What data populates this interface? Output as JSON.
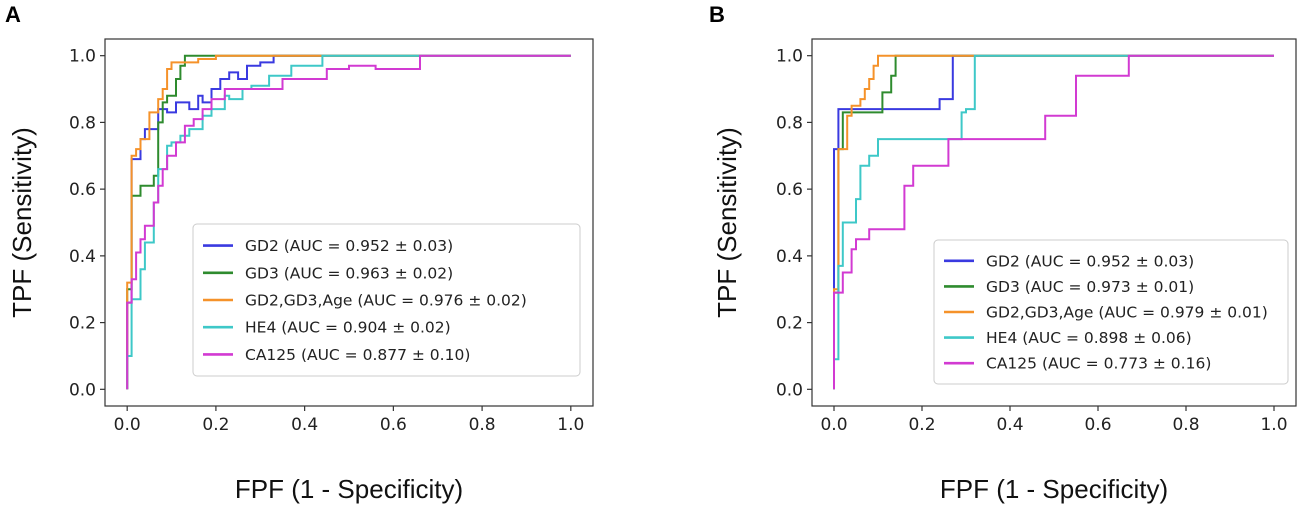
{
  "chart_data": [
    {
      "panel_label": "A",
      "type": "line",
      "xlabel": "FPF (1 - Specificity)",
      "ylabel": "TPF (Sensitivity)",
      "xlim": [
        -0.05,
        1.05
      ],
      "ylim": [
        -0.05,
        1.05
      ],
      "xticks": [
        "0.0",
        "0.2",
        "0.4",
        "0.6",
        "0.8",
        "1.0"
      ],
      "yticks": [
        "0.0",
        "0.2",
        "0.4",
        "0.6",
        "0.8",
        "1.0"
      ],
      "legend_position": "lower-right",
      "series": [
        {
          "name": "GD2 (AUC = 0.952 ± 0.03)",
          "color": "#3a3ae0",
          "x": [
            0,
            0,
            0.01,
            0.01,
            0.03,
            0.03,
            0.04,
            0.04,
            0.07,
            0.07,
            0.09,
            0.09,
            0.11,
            0.11,
            0.14,
            0.14,
            0.16,
            0.16,
            0.17,
            0.17,
            0.19,
            0.19,
            0.21,
            0.21,
            0.23,
            0.23,
            0.25,
            0.25,
            0.27,
            0.27,
            0.3,
            0.3,
            0.33,
            0.33,
            1.0
          ],
          "y": [
            0,
            0.26,
            0.26,
            0.69,
            0.69,
            0.75,
            0.75,
            0.78,
            0.78,
            0.84,
            0.84,
            0.83,
            0.83,
            0.86,
            0.86,
            0.84,
            0.84,
            0.88,
            0.88,
            0.86,
            0.86,
            0.9,
            0.9,
            0.93,
            0.93,
            0.95,
            0.95,
            0.93,
            0.93,
            0.97,
            0.97,
            0.98,
            0.98,
            1.0,
            1.0
          ]
        },
        {
          "name": "GD3 (AUC = 0.963 ± 0.02)",
          "color": "#2e8b2e",
          "x": [
            0,
            0,
            0.01,
            0.01,
            0.03,
            0.03,
            0.06,
            0.06,
            0.07,
            0.07,
            0.08,
            0.08,
            0.09,
            0.09,
            0.11,
            0.11,
            0.12,
            0.12,
            0.13,
            0.13,
            1.0
          ],
          "y": [
            0,
            0.3,
            0.3,
            0.58,
            0.58,
            0.61,
            0.61,
            0.64,
            0.64,
            0.8,
            0.8,
            0.86,
            0.86,
            0.88,
            0.88,
            0.93,
            0.93,
            0.97,
            0.97,
            1.0,
            1.0
          ]
        },
        {
          "name": "GD2,GD3,Age (AUC = 0.976 ± 0.02)",
          "color": "#f5922a",
          "x": [
            0,
            0,
            0.01,
            0.01,
            0.02,
            0.02,
            0.03,
            0.03,
            0.05,
            0.05,
            0.07,
            0.07,
            0.08,
            0.08,
            0.09,
            0.09,
            0.1,
            0.1,
            0.16,
            0.16,
            0.2,
            0.2,
            1.0
          ],
          "y": [
            0,
            0.32,
            0.32,
            0.7,
            0.7,
            0.72,
            0.72,
            0.75,
            0.75,
            0.83,
            0.83,
            0.87,
            0.87,
            0.9,
            0.9,
            0.96,
            0.96,
            0.98,
            0.98,
            0.99,
            0.99,
            1.0,
            1.0
          ]
        },
        {
          "name": "HE4 (AUC = 0.904 ± 0.02)",
          "color": "#3ec8c8",
          "x": [
            0,
            0,
            0.01,
            0.01,
            0.03,
            0.03,
            0.04,
            0.04,
            0.06,
            0.06,
            0.07,
            0.07,
            0.09,
            0.09,
            0.1,
            0.1,
            0.12,
            0.12,
            0.14,
            0.14,
            0.17,
            0.17,
            0.19,
            0.19,
            0.22,
            0.22,
            0.23,
            0.23,
            0.26,
            0.26,
            0.28,
            0.28,
            0.32,
            0.32,
            0.37,
            0.37,
            0.44,
            0.44,
            1.0
          ],
          "y": [
            0,
            0.1,
            0.1,
            0.27,
            0.27,
            0.36,
            0.36,
            0.44,
            0.44,
            0.56,
            0.56,
            0.66,
            0.66,
            0.73,
            0.73,
            0.74,
            0.74,
            0.76,
            0.76,
            0.78,
            0.78,
            0.82,
            0.82,
            0.84,
            0.84,
            0.88,
            0.88,
            0.87,
            0.87,
            0.9,
            0.9,
            0.91,
            0.91,
            0.94,
            0.94,
            0.97,
            0.97,
            1.0,
            1.0
          ]
        },
        {
          "name": "CA125 (AUC = 0.877 ± 0.10)",
          "color": "#d23ad2",
          "x": [
            0,
            0,
            0.01,
            0.01,
            0.02,
            0.02,
            0.03,
            0.03,
            0.04,
            0.04,
            0.06,
            0.06,
            0.07,
            0.07,
            0.08,
            0.08,
            0.09,
            0.09,
            0.11,
            0.11,
            0.13,
            0.13,
            0.15,
            0.15,
            0.17,
            0.17,
            0.19,
            0.19,
            0.22,
            0.22,
            0.28,
            0.28,
            0.35,
            0.35,
            0.45,
            0.45,
            0.5,
            0.5,
            0.56,
            0.56,
            0.66,
            0.66,
            1.0
          ],
          "y": [
            0,
            0.26,
            0.26,
            0.33,
            0.33,
            0.41,
            0.41,
            0.45,
            0.45,
            0.49,
            0.49,
            0.56,
            0.56,
            0.61,
            0.61,
            0.66,
            0.66,
            0.7,
            0.7,
            0.74,
            0.74,
            0.79,
            0.79,
            0.81,
            0.81,
            0.84,
            0.84,
            0.87,
            0.87,
            0.9,
            0.9,
            0.9,
            0.9,
            0.93,
            0.93,
            0.96,
            0.96,
            0.97,
            0.97,
            0.96,
            0.96,
            1.0,
            1.0
          ]
        }
      ]
    },
    {
      "panel_label": "B",
      "type": "line",
      "xlabel": "FPF (1 - Specificity)",
      "ylabel": "TPF (Sensitivity)",
      "xlim": [
        -0.05,
        1.05
      ],
      "ylim": [
        -0.05,
        1.05
      ],
      "xticks": [
        "0.0",
        "0.2",
        "0.4",
        "0.6",
        "0.8",
        "1.0"
      ],
      "yticks": [
        "0.0",
        "0.2",
        "0.4",
        "0.6",
        "0.8",
        "1.0"
      ],
      "legend_position": "lower-right",
      "series": [
        {
          "name": "GD2 (AUC = 0.952 ± 0.03)",
          "color": "#3a3ae0",
          "x": [
            0,
            0,
            0.01,
            0.01,
            0.24,
            0.24,
            0.27,
            0.27,
            1.0
          ],
          "y": [
            0,
            0.72,
            0.72,
            0.84,
            0.84,
            0.87,
            0.87,
            1.0,
            1.0
          ]
        },
        {
          "name": "GD3 (AUC = 0.973 ± 0.01)",
          "color": "#2e8b2e",
          "x": [
            0,
            0,
            0.01,
            0.01,
            0.02,
            0.02,
            0.11,
            0.11,
            0.13,
            0.13,
            0.14,
            0.14,
            1.0
          ],
          "y": [
            0,
            0.29,
            0.29,
            0.72,
            0.72,
            0.83,
            0.83,
            0.89,
            0.89,
            0.94,
            0.94,
            1.0,
            1.0
          ]
        },
        {
          "name": "GD2,GD3,Age (AUC = 0.979 ± 0.01)",
          "color": "#f5922a",
          "x": [
            0,
            0,
            0.01,
            0.01,
            0.03,
            0.03,
            0.04,
            0.04,
            0.06,
            0.06,
            0.07,
            0.07,
            0.08,
            0.08,
            0.09,
            0.09,
            0.1,
            0.1,
            1.0
          ],
          "y": [
            0,
            0.3,
            0.3,
            0.72,
            0.72,
            0.82,
            0.82,
            0.85,
            0.85,
            0.87,
            0.87,
            0.9,
            0.9,
            0.93,
            0.93,
            0.97,
            0.97,
            1.0,
            1.0
          ]
        },
        {
          "name": "HE4 (AUC = 0.898 ± 0.06)",
          "color": "#3ec8c8",
          "x": [
            0,
            0,
            0.01,
            0.01,
            0.02,
            0.02,
            0.03,
            0.03,
            0.05,
            0.05,
            0.06,
            0.06,
            0.08,
            0.08,
            0.1,
            0.1,
            0.26,
            0.26,
            0.29,
            0.29,
            0.3,
            0.3,
            0.32,
            0.32,
            1.0
          ],
          "y": [
            0,
            0.09,
            0.09,
            0.37,
            0.37,
            0.5,
            0.5,
            0.5,
            0.5,
            0.57,
            0.57,
            0.67,
            0.67,
            0.7,
            0.7,
            0.75,
            0.75,
            0.75,
            0.75,
            0.83,
            0.83,
            0.84,
            0.84,
            1.0,
            1.0
          ]
        },
        {
          "name": "CA125 (AUC = 0.773 ± 0.16)",
          "color": "#d23ad2",
          "x": [
            0,
            0,
            0.02,
            0.02,
            0.04,
            0.04,
            0.05,
            0.05,
            0.08,
            0.08,
            0.16,
            0.16,
            0.18,
            0.18,
            0.21,
            0.21,
            0.26,
            0.26,
            0.48,
            0.48,
            0.5,
            0.5,
            0.55,
            0.55,
            0.67,
            0.67,
            1.0
          ],
          "y": [
            0,
            0.29,
            0.29,
            0.35,
            0.35,
            0.42,
            0.42,
            0.45,
            0.45,
            0.48,
            0.48,
            0.61,
            0.61,
            0.67,
            0.67,
            0.67,
            0.67,
            0.75,
            0.75,
            0.82,
            0.82,
            0.82,
            0.82,
            0.94,
            0.94,
            1.0,
            1.0
          ]
        }
      ]
    }
  ]
}
